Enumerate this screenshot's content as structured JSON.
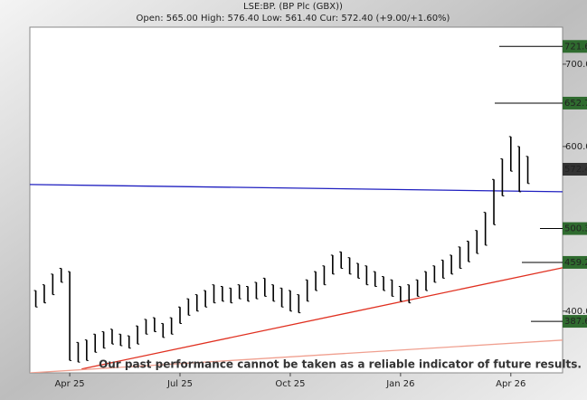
{
  "chart_data": {
    "type": "range-bar",
    "title": "LSE:BP. (BP Plc (GBX))",
    "subtitle": "Open: 565.00 High: 576.40 Low: 561.40 Cur: 572.40 (+9.00/+1.60%)",
    "annotation": "Our past performance cannot be taken as a reliable indicator of future results.",
    "color": "#000000",
    "x": [
      -4,
      -3,
      -2,
      -1,
      0,
      1,
      2,
      3,
      4,
      5,
      6,
      7,
      8,
      9,
      10,
      11,
      12,
      13,
      14,
      15,
      16,
      17,
      18,
      19,
      20,
      21,
      22,
      23,
      24,
      25,
      26,
      27,
      28,
      29,
      30,
      31,
      32,
      33,
      34,
      35,
      36,
      37,
      38,
      39,
      40,
      41,
      42,
      43,
      44,
      45,
      46,
      47,
      48,
      49,
      50,
      51,
      52,
      53,
      54
    ],
    "high": [
      425,
      432,
      445,
      452,
      448,
      362,
      365,
      372,
      375,
      378,
      372,
      370,
      382,
      390,
      392,
      385,
      392,
      405,
      415,
      420,
      425,
      432,
      430,
      428,
      432,
      430,
      435,
      440,
      432,
      428,
      425,
      420,
      438,
      448,
      455,
      468,
      472,
      465,
      458,
      455,
      448,
      442,
      438,
      430,
      432,
      438,
      448,
      455,
      462,
      468,
      478,
      485,
      498,
      520,
      560,
      585,
      612,
      600,
      588
    ],
    "low": [
      405,
      410,
      420,
      435,
      340,
      338,
      340,
      350,
      355,
      360,
      358,
      355,
      360,
      372,
      375,
      368,
      372,
      385,
      395,
      400,
      405,
      410,
      412,
      410,
      415,
      412,
      415,
      418,
      412,
      405,
      400,
      398,
      412,
      425,
      432,
      445,
      452,
      445,
      440,
      432,
      430,
      425,
      418,
      412,
      410,
      418,
      425,
      435,
      440,
      445,
      452,
      460,
      470,
      480,
      505,
      540,
      570,
      545,
      555
    ],
    "xlim": [
      -4.7,
      58.1
    ],
    "xticks": [
      {
        "value": 0,
        "label": "Apr 25"
      },
      {
        "value": 13,
        "label": "Jul 25"
      },
      {
        "value": 26,
        "label": "Oct 25"
      },
      {
        "value": 39,
        "label": "Jan 26"
      },
      {
        "value": 52,
        "label": "Apr 26"
      }
    ],
    "ylim": [
      325,
      745
    ],
    "yticks": [
      {
        "value": 400,
        "label": "400.0"
      },
      {
        "value": 600,
        "label": "600.0"
      },
      {
        "value": 700,
        "label": "700.0"
      }
    ],
    "trend_lines": [
      {
        "color": "#2020c0",
        "x": [
          -4.7,
          58.1
        ],
        "values": [
          553.8,
          545
        ]
      },
      {
        "color": "#e03020",
        "x": [
          1.4,
          58.1
        ],
        "values": [
          329.7,
          452.7
        ]
      },
      {
        "color": "#f0a090",
        "x": [
          -4.7,
          58.1
        ],
        "values": [
          325,
          364.8
        ]
      }
    ],
    "levels": [
      721.6,
      652.7,
      500.3,
      459.2,
      387.6
    ],
    "level_color": "#2f6b2f",
    "current": 572.4,
    "current_color": "#333333"
  }
}
